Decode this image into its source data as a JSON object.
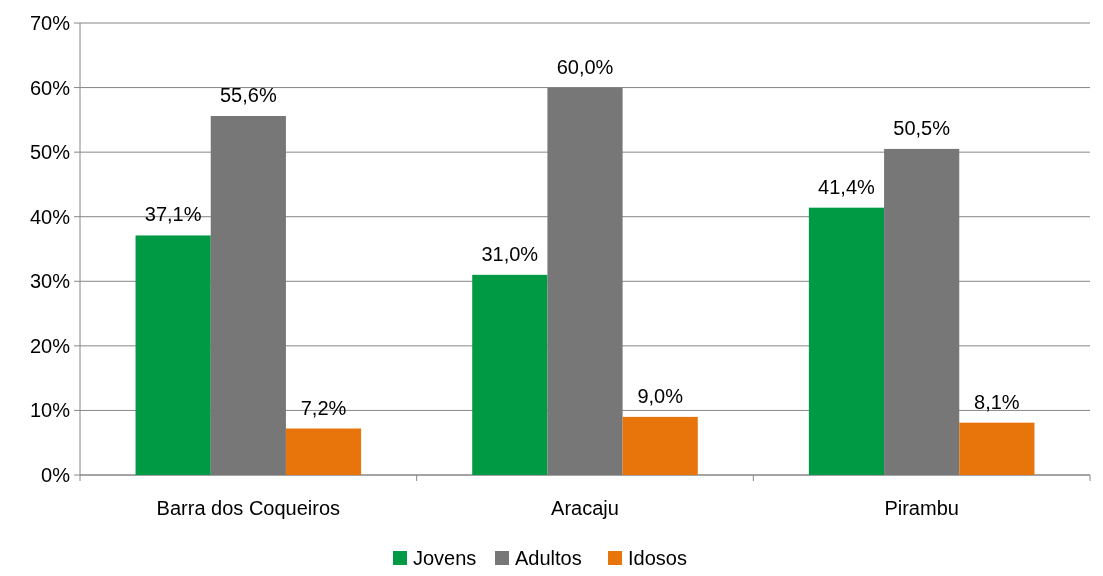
{
  "chart_data": {
    "type": "bar",
    "categories": [
      "Barra dos Coqueiros",
      "Aracaju",
      "Pirambu"
    ],
    "series": [
      {
        "name": "Jovens",
        "color": "#009a44",
        "values": [
          37.1,
          31.0,
          41.4
        ],
        "value_labels": [
          "37,1%",
          "31,0%",
          "41,4%"
        ]
      },
      {
        "name": "Adultos",
        "color": "#777777",
        "values": [
          55.6,
          60.0,
          50.5
        ],
        "value_labels": [
          "55,6%",
          "60,0%",
          "50,5%"
        ]
      },
      {
        "name": "Idosos",
        "color": "#e8740c",
        "values": [
          7.2,
          9.0,
          8.1
        ],
        "value_labels": [
          "7,2%",
          "9,0%",
          "8,1%"
        ]
      }
    ],
    "ylim": [
      0,
      70
    ],
    "yticks": [
      {
        "value": 0,
        "label": "0%"
      },
      {
        "value": 10,
        "label": "10%"
      },
      {
        "value": 20,
        "label": "20%"
      },
      {
        "value": 30,
        "label": "30%"
      },
      {
        "value": 40,
        "label": "40%"
      },
      {
        "value": 50,
        "label": "50%"
      },
      {
        "value": 60,
        "label": "60%"
      },
      {
        "value": 70,
        "label": "70%"
      }
    ],
    "grid": "y",
    "legend": "bottom"
  }
}
